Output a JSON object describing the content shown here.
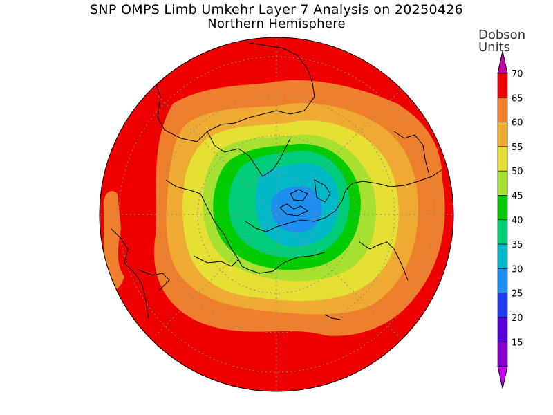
{
  "title": "SNP OMPS Limb Umkehr Layer 7 Analysis on 20250426",
  "subtitle": "Northern Hemisphere",
  "colorbar": {
    "units_line1": "Dobson",
    "units_line2": "Units",
    "labels": [
      "70",
      "65",
      "60",
      "55",
      "50",
      "45",
      "40",
      "35",
      "30",
      "25",
      "20",
      "15"
    ],
    "levels": [
      {
        "min": 65,
        "max": 70,
        "color": "#ee0000"
      },
      {
        "min": 60,
        "max": 65,
        "color": "#ee7f2d"
      },
      {
        "min": 55,
        "max": 60,
        "color": "#eeaa33"
      },
      {
        "min": 50,
        "max": 55,
        "color": "#e5e033"
      },
      {
        "min": 45,
        "max": 50,
        "color": "#a8e032"
      },
      {
        "min": 40,
        "max": 45,
        "color": "#00cc00"
      },
      {
        "min": 35,
        "max": 40,
        "color": "#00cc7a"
      },
      {
        "min": 30,
        "max": 35,
        "color": "#00b8c8"
      },
      {
        "min": 25,
        "max": 30,
        "color": "#1e8ff0"
      },
      {
        "min": 20,
        "max": 25,
        "color": "#1e3cf0"
      },
      {
        "min": 15,
        "max": 20,
        "color": "#5500dd"
      },
      {
        "min": 10,
        "max": 15,
        "color": "#8800cc"
      }
    ],
    "over_color": "#cc00aa",
    "under_color": "#cc00ff"
  }
}
